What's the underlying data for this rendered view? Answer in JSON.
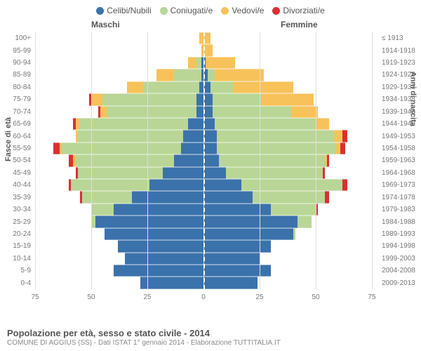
{
  "type": "population-pyramid",
  "legend": [
    {
      "label": "Celibi/Nubili",
      "color": "#3b72ab"
    },
    {
      "label": "Coniugati/e",
      "color": "#b9d696"
    },
    {
      "label": "Vedovi/e",
      "color": "#f8c25a"
    },
    {
      "label": "Divorziati/e",
      "color": "#d93030"
    }
  ],
  "headers": {
    "male": "Maschi",
    "female": "Femmine"
  },
  "axis_titles": {
    "left": "Fasce di età",
    "right": "Anni di nascita"
  },
  "xmax": 75,
  "xticks": [
    75,
    50,
    25,
    0,
    25,
    50,
    75
  ],
  "background_color": "#ffffff",
  "grid_color": "#dddddd",
  "tick_font_size": 10,
  "tick_color": "#777777",
  "ages": [
    "100+",
    "95-99",
    "90-94",
    "85-89",
    "80-84",
    "75-79",
    "70-74",
    "65-69",
    "60-64",
    "55-59",
    "50-54",
    "45-49",
    "40-44",
    "35-39",
    "30-34",
    "25-29",
    "20-24",
    "15-19",
    "10-14",
    "5-9",
    "0-4"
  ],
  "birth_years": [
    "≤ 1913",
    "1914-1918",
    "1919-1923",
    "1924-1928",
    "1929-1933",
    "1934-1938",
    "1939-1943",
    "1944-1948",
    "1949-1953",
    "1954-1958",
    "1959-1963",
    "1964-1968",
    "1969-1973",
    "1974-1978",
    "1979-1983",
    "1984-1988",
    "1989-1993",
    "1994-1998",
    "1999-2003",
    "2004-2008",
    "2009-2013"
  ],
  "male": [
    {
      "c": 0,
      "m": 0,
      "w": 2,
      "d": 0
    },
    {
      "c": 0,
      "m": 0,
      "w": 1,
      "d": 0
    },
    {
      "c": 1,
      "m": 2,
      "w": 4,
      "d": 0
    },
    {
      "c": 1,
      "m": 12,
      "w": 8,
      "d": 0
    },
    {
      "c": 2,
      "m": 25,
      "w": 7,
      "d": 0
    },
    {
      "c": 3,
      "m": 42,
      "w": 5,
      "d": 1
    },
    {
      "c": 3,
      "m": 40,
      "w": 3,
      "d": 1
    },
    {
      "c": 7,
      "m": 48,
      "w": 2,
      "d": 1
    },
    {
      "c": 9,
      "m": 47,
      "w": 1,
      "d": 0
    },
    {
      "c": 10,
      "m": 53,
      "w": 1,
      "d": 3
    },
    {
      "c": 13,
      "m": 44,
      "w": 1,
      "d": 2
    },
    {
      "c": 18,
      "m": 38,
      "w": 0,
      "d": 1
    },
    {
      "c": 24,
      "m": 35,
      "w": 0,
      "d": 1
    },
    {
      "c": 32,
      "m": 22,
      "w": 0,
      "d": 1
    },
    {
      "c": 40,
      "m": 10,
      "w": 0,
      "d": 0
    },
    {
      "c": 48,
      "m": 2,
      "w": 0,
      "d": 0
    },
    {
      "c": 44,
      "m": 0,
      "w": 0,
      "d": 0
    },
    {
      "c": 38,
      "m": 0,
      "w": 0,
      "d": 0
    },
    {
      "c": 35,
      "m": 0,
      "w": 0,
      "d": 0
    },
    {
      "c": 40,
      "m": 0,
      "w": 0,
      "d": 0
    },
    {
      "c": 28,
      "m": 0,
      "w": 0,
      "d": 0
    }
  ],
  "female": [
    {
      "c": 0,
      "m": 0,
      "w": 3,
      "d": 0
    },
    {
      "c": 0,
      "m": 0,
      "w": 4,
      "d": 0
    },
    {
      "c": 1,
      "m": 0,
      "w": 13,
      "d": 0
    },
    {
      "c": 2,
      "m": 3,
      "w": 22,
      "d": 0
    },
    {
      "c": 3,
      "m": 10,
      "w": 27,
      "d": 0
    },
    {
      "c": 4,
      "m": 22,
      "w": 23,
      "d": 0
    },
    {
      "c": 4,
      "m": 35,
      "w": 12,
      "d": 0
    },
    {
      "c": 5,
      "m": 45,
      "w": 6,
      "d": 0
    },
    {
      "c": 6,
      "m": 52,
      "w": 4,
      "d": 2
    },
    {
      "c": 6,
      "m": 53,
      "w": 2,
      "d": 2
    },
    {
      "c": 7,
      "m": 47,
      "w": 1,
      "d": 1
    },
    {
      "c": 10,
      "m": 43,
      "w": 0,
      "d": 1
    },
    {
      "c": 17,
      "m": 45,
      "w": 0,
      "d": 2
    },
    {
      "c": 22,
      "m": 32,
      "w": 0,
      "d": 2
    },
    {
      "c": 30,
      "m": 20,
      "w": 0,
      "d": 1
    },
    {
      "c": 42,
      "m": 6,
      "w": 0,
      "d": 0
    },
    {
      "c": 40,
      "m": 1,
      "w": 0,
      "d": 0
    },
    {
      "c": 30,
      "m": 0,
      "w": 0,
      "d": 0
    },
    {
      "c": 25,
      "m": 0,
      "w": 0,
      "d": 0
    },
    {
      "c": 30,
      "m": 0,
      "w": 0,
      "d": 0
    },
    {
      "c": 24,
      "m": 0,
      "w": 0,
      "d": 0
    }
  ],
  "footer": {
    "title": "Popolazione per età, sesso e stato civile - 2014",
    "subtitle": "COMUNE DI AGGIUS (SS) - Dati ISTAT 1° gennaio 2014 - Elaborazione TUTTITALIA.IT"
  }
}
